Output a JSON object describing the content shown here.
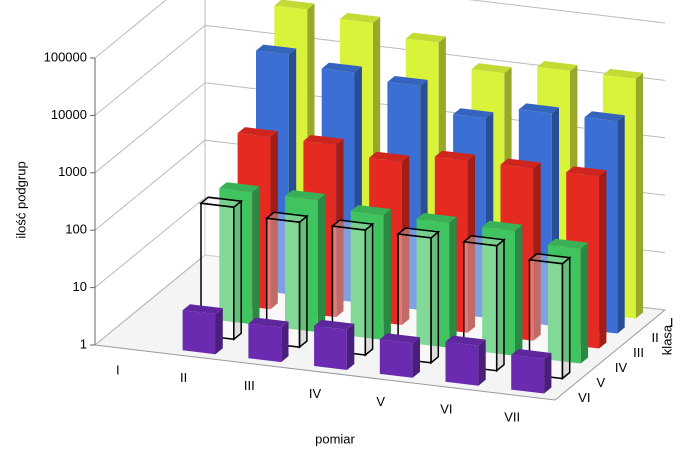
{
  "chart_data": {
    "type": "bar3d",
    "y_label": "ilość podgrup",
    "x_label": "pomiar",
    "z_label": "klasa",
    "categories": [
      "I",
      "II",
      "III",
      "IV",
      "V",
      "VI",
      "VII"
    ],
    "log_scale": true,
    "grid": true,
    "ylim": [
      1,
      100000
    ],
    "yticks": [
      1,
      10,
      100,
      1000,
      10000,
      100000
    ],
    "series": [
      {
        "name": "I",
        "color": "#d9f23a",
        "values": [
          null,
          50000,
          40000,
          25000,
          10000,
          15000,
          15000
        ]
      },
      {
        "name": "II",
        "color": "#3b6fd4",
        "values": [
          null,
          15000,
          10000,
          8000,
          3000,
          5000,
          5000
        ]
      },
      {
        "name": "III",
        "color": "#e52a22",
        "values": [
          null,
          1000,
          1000,
          700,
          1000,
          1000,
          1000
        ]
      },
      {
        "name": "IV",
        "color": "#3fc460",
        "values": [
          null,
          200,
          200,
          150,
          150,
          150,
          100
        ]
      },
      {
        "name": "V",
        "color": "#ffffff",
        "style": "outline",
        "values": [
          null,
          200,
          150,
          150,
          150,
          150,
          100
        ]
      },
      {
        "name": "VI",
        "color": "#6a2bb0",
        "values": [
          null,
          5,
          4,
          5,
          4,
          5,
          4
        ]
      }
    ]
  }
}
